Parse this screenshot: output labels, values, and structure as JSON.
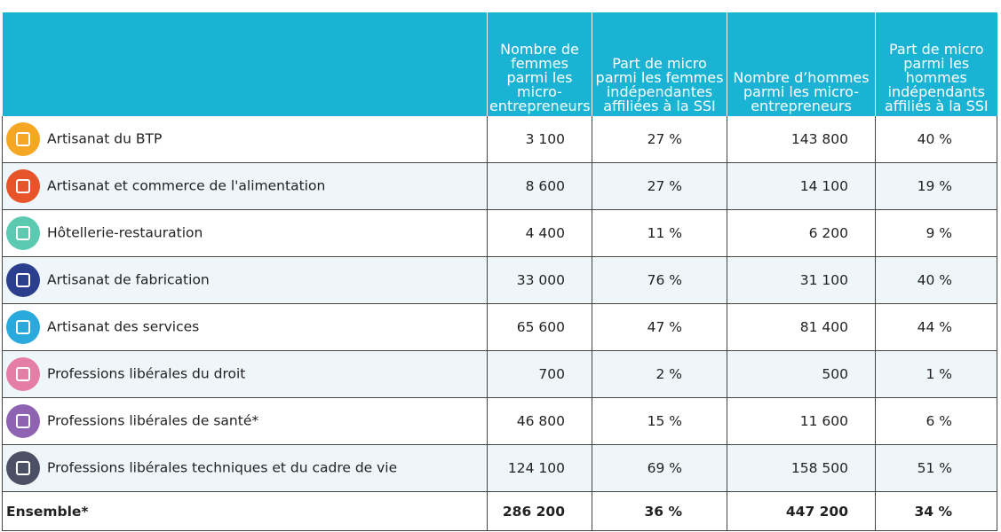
{
  "table": {
    "headers": [
      "Nombre de femmes parmi les micro-entrepreneurs",
      "Part de micro parmi les femmes indépendantes affiliées à la SSI",
      "Nombre d’hommes parmi les micro-entrepreneurs",
      "Part de micro parmi les hommes indépendants affiliés à la SSI"
    ],
    "rows": [
      [
        "Artisanat du BTP",
        "3 100",
        "27 %",
        "143 800",
        "40 %"
      ],
      [
        "Artisanat et commerce de l'alimentation",
        "8 600",
        "27 %",
        "14 100",
        "19 %"
      ],
      [
        "Hôtellerie-restauration",
        "4 400",
        "11 %",
        "6 200",
        "9 %"
      ],
      [
        "Artisanat de fabrication",
        "33 000",
        "76 %",
        "31 100",
        "40 %"
      ],
      [
        "Artisanat des services",
        "65 600",
        "47 %",
        "81 400",
        "44 %"
      ],
      [
        "Professions libérales du droit",
        "700",
        "2 %",
        "500",
        "1 %"
      ],
      [
        "Professions libérales de santé*",
        "46 800",
        "15 %",
        "11 600",
        "6 %"
      ],
      [
        "Professions libérales techniques et du cadre de vie",
        "124 100",
        "69 %",
        "158 500",
        "51 %"
      ]
    ],
    "total": [
      "Ensemble*",
      "286 200",
      "36 %",
      "447 200",
      "34 %"
    ]
  }
}
